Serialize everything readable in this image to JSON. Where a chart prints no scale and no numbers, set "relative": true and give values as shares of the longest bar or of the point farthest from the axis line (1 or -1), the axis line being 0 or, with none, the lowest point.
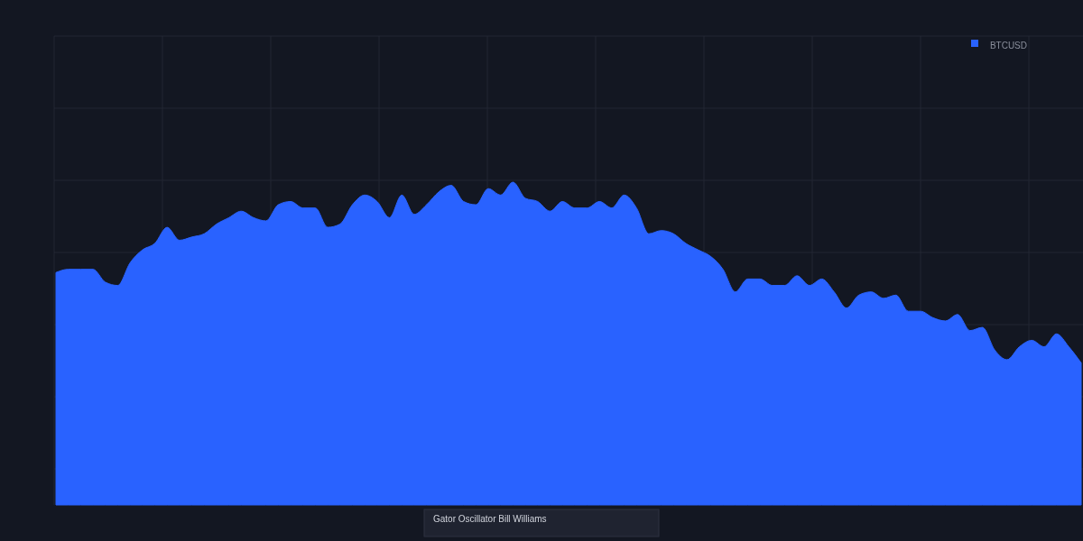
{
  "chart_data": {
    "type": "area",
    "title": "Gator Oscillator Bill Williams",
    "relative": true,
    "grid": true,
    "legend": "top right",
    "categories": [
      null,
      null,
      null,
      null,
      null,
      null,
      null,
      null,
      null,
      null,
      null,
      null,
      null,
      null,
      null,
      null,
      null,
      null,
      null,
      null,
      null,
      null,
      null,
      null,
      null,
      null,
      null,
      null,
      null,
      null,
      null,
      null,
      null,
      null,
      null,
      null,
      null,
      null,
      null,
      null,
      null,
      null,
      null,
      null,
      null,
      null,
      null,
      null,
      null,
      null,
      null,
      null,
      null,
      null,
      null,
      null,
      null,
      null,
      null,
      null,
      null,
      null,
      null,
      null,
      null,
      null,
      null,
      null,
      null,
      null,
      null,
      null,
      null,
      null,
      null,
      null,
      null,
      null,
      null,
      null,
      null,
      null,
      null,
      null
    ],
    "series": [
      {
        "name": "BTCUSD",
        "color": "#2962ff",
        "values": [
          0.72,
          0.73,
          0.73,
          0.73,
          0.69,
          0.68,
          0.75,
          0.79,
          0.81,
          0.86,
          0.82,
          0.83,
          0.84,
          0.87,
          0.89,
          0.91,
          0.89,
          0.88,
          0.93,
          0.94,
          0.92,
          0.92,
          0.86,
          0.87,
          0.93,
          0.96,
          0.94,
          0.89,
          0.96,
          0.9,
          0.93,
          0.97,
          0.99,
          0.94,
          0.93,
          0.98,
          0.96,
          1.0,
          0.95,
          0.94,
          0.91,
          0.94,
          0.92,
          0.92,
          0.94,
          0.92,
          0.96,
          0.92,
          0.84,
          0.85,
          0.84,
          0.81,
          0.79,
          0.77,
          0.73,
          0.66,
          0.7,
          0.7,
          0.68,
          0.68,
          0.71,
          0.68,
          0.7,
          0.66,
          0.61,
          0.65,
          0.66,
          0.64,
          0.65,
          0.6,
          0.6,
          0.58,
          0.57,
          0.59,
          0.54,
          0.55,
          0.48,
          0.45,
          0.49,
          0.51,
          0.49,
          0.53,
          0.49,
          0.44
        ]
      }
    ]
  }
}
